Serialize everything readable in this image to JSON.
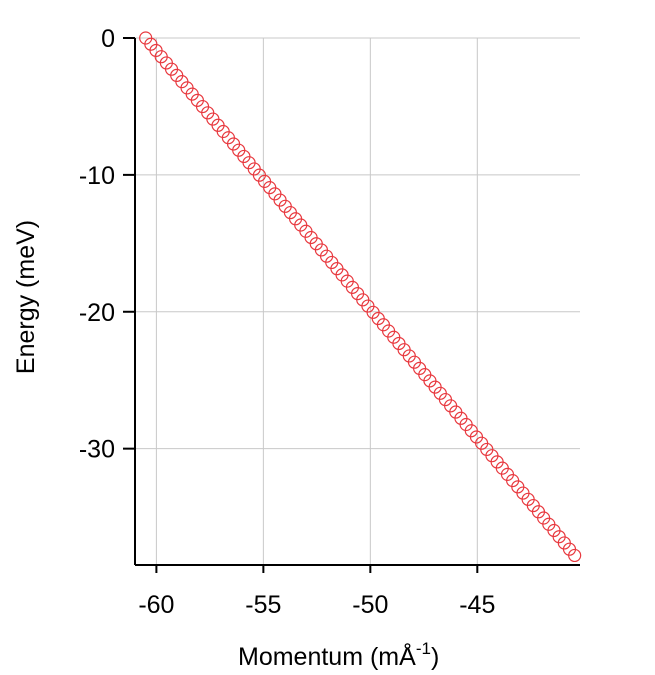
{
  "chart_data": {
    "type": "scatter",
    "xlabel": "Momentum (mÅ",
    "xlabel_superscript": "-1",
    "xlabel_close": ")",
    "ylabel": "Energy (meV)",
    "xlim": [
      -61.0,
      -40.2
    ],
    "ylim": [
      -38.5,
      0.0
    ],
    "x_ticks": [
      -60,
      -55,
      -50,
      -45
    ],
    "x_tick_labels": [
      "-60",
      "-55",
      "-50",
      "-45"
    ],
    "y_ticks": [
      0,
      -10,
      -20,
      -30
    ],
    "y_tick_labels": [
      "0",
      "-10",
      "-20",
      "-30"
    ],
    "grid": true,
    "marker": "open-circle",
    "marker_color": "#e8393f",
    "series": [
      {
        "x_start": -60.5,
        "x_end": -40.45,
        "y_start": 0.0,
        "y_end": -37.8,
        "count": 84,
        "x": [],
        "y": []
      }
    ]
  }
}
